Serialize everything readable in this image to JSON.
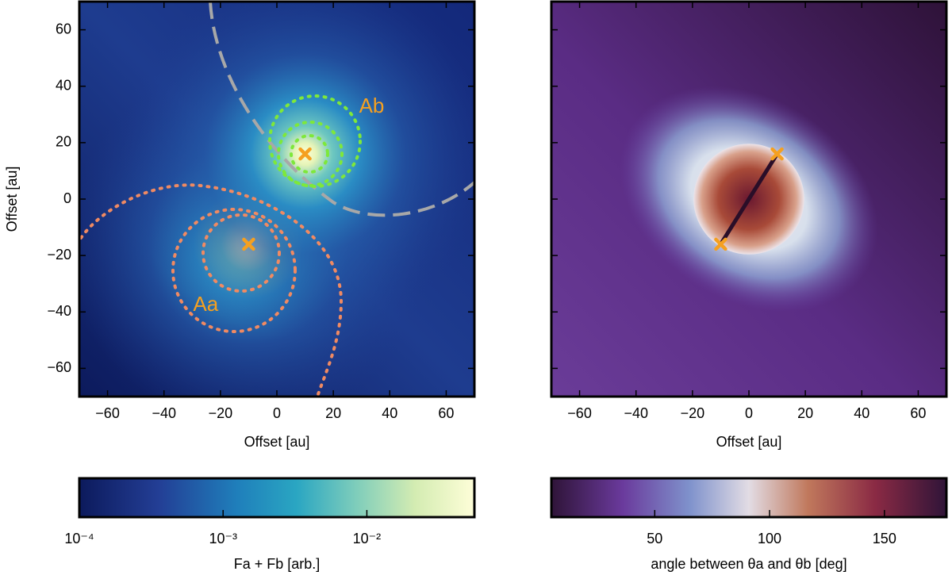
{
  "chart_data": [
    {
      "type": "heatmap",
      "xlabel": "Offset [au]",
      "ylabel": "Offset [au]",
      "xlim": [
        -70,
        70
      ],
      "ylim": [
        -70,
        70
      ],
      "xticks": [
        {
          "value": -60,
          "label": "−60"
        },
        {
          "value": -40,
          "label": "−40"
        },
        {
          "value": -20,
          "label": "−20"
        },
        0,
        20,
        40,
        60
      ],
      "yticks": [
        {
          "value": -60,
          "label": "−60"
        },
        {
          "value": -40,
          "label": "−40"
        },
        {
          "value": -20,
          "label": "−20"
        },
        0,
        20,
        40,
        60
      ],
      "markers": {
        "x": [
          -10,
          10
        ],
        "y": [
          -16,
          16
        ],
        "color": "#f5a020"
      },
      "annotations": [
        {
          "text": "Aa",
          "color": "#f5a020"
        },
        {
          "text": "Ab",
          "color": "#f5a020"
        }
      ],
      "colorbar": {
        "label": "Fa + Fb [arb.]",
        "log": true,
        "lim": [
          0.0001,
          0.056
        ],
        "ticks": [
          {
            "value": 0.0001,
            "label": "10⁻⁴"
          },
          {
            "value": 0.001,
            "label": "10⁻³"
          },
          {
            "value": 0.01,
            "label": "10⁻²"
          }
        ]
      }
    },
    {
      "type": "heatmap",
      "xlabel": "Offset [au]",
      "xlim": [
        -70,
        70
      ],
      "ylim": [
        -70,
        70
      ],
      "xticks": [
        {
          "value": -60,
          "label": "−60"
        },
        {
          "value": -40,
          "label": "−40"
        },
        {
          "value": -20,
          "label": "−20"
        },
        0,
        20,
        40,
        60
      ],
      "yticks": [
        -60,
        -40,
        -20,
        0,
        20,
        40,
        60
      ],
      "markers": {
        "x": [
          -10,
          10
        ],
        "y": [
          -16,
          16
        ],
        "color": "#f5a020"
      },
      "colorbar": {
        "label": "angle between θa and θb [deg]",
        "log": false,
        "lim": [
          5,
          177
        ],
        "ticks": [
          50,
          100,
          150
        ]
      }
    }
  ]
}
